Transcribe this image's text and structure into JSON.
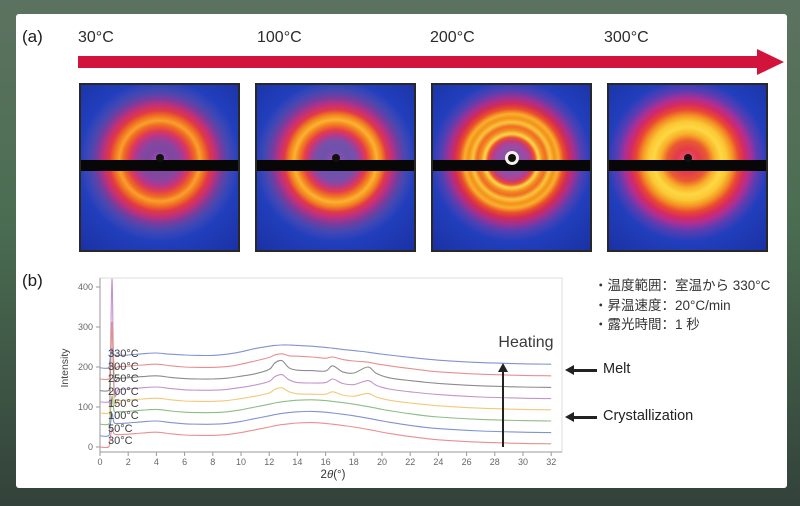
{
  "panel_a": {
    "label": "(a)",
    "temperatures": [
      "30°C",
      "100°C",
      "200°C",
      "300°C"
    ],
    "arrow_color": "#d2143c",
    "detector_images": [
      {
        "temperature": "30°C",
        "appearance": "broad diffuse amorphous halo, purple center, black beamstop dot and horizontal beamstop bar"
      },
      {
        "temperature": "100°C",
        "appearance": "broad diffuse amorphous halo, slightly brighter yellow-orange ring"
      },
      {
        "temperature": "200°C",
        "appearance": "multiple sharp concentric crystalline rings, bright yellow inner ring, white ring around beamstop"
      },
      {
        "temperature": "300°C",
        "appearance": "bright broad yellow ring with hot red-orange center (near melt)"
      }
    ]
  },
  "panel_b": {
    "label": "(b)",
    "notes": [
      "・温度範囲：室温から 330°C",
      "・昇温速度：20°C/min",
      "・露光時間：1 秒"
    ],
    "heating_label": "Heating",
    "melt_label": "Melt",
    "crystallization_label": "Crystallization"
  },
  "chart_data": {
    "type": "line",
    "title": "",
    "xlabel": "2θ(°)",
    "ylabel": "Intensity",
    "xlim": [
      0,
      32.7
    ],
    "ylim": [
      -10,
      420
    ],
    "x_ticks": [
      0,
      2,
      4,
      6,
      8,
      10,
      12,
      14,
      16,
      18,
      20,
      22,
      24,
      26,
      28,
      30,
      32
    ],
    "y_ticks": [
      0,
      100,
      200,
      300,
      400
    ],
    "grid": false,
    "legend_position": "stacked curve labels at left, top-to-bottom hottest first",
    "x": [
      0,
      0.6,
      0.7,
      0.85,
      1.0,
      1.3,
      2,
      3,
      4,
      5,
      6,
      7,
      8,
      9,
      10,
      11,
      12,
      12.4,
      12.9,
      13.4,
      14,
      15,
      16,
      16.5,
      17.2,
      18,
      19,
      19.6,
      20.5,
      22,
      24,
      27,
      30,
      32
    ],
    "series": [
      {
        "label": "330°C",
        "color": "#8292d2",
        "offset": 198,
        "values": [
          198,
          198,
          216,
          246,
          231,
          229,
          230,
          233,
          235,
          232,
          230,
          229,
          229,
          232,
          238,
          246,
          252,
          254,
          255,
          255,
          254,
          252,
          249,
          247,
          244,
          241,
          237,
          234,
          230,
          224,
          217,
          211,
          208,
          207
        ]
      },
      {
        "label": "300°C",
        "color": "#e89090",
        "offset": 170,
        "values": [
          170,
          170,
          188,
          310,
          203,
          201,
          202,
          205,
          207,
          203,
          200,
          199,
          199,
          201,
          207,
          215,
          224,
          230,
          233,
          228,
          227,
          225,
          222,
          225,
          219,
          215,
          212,
          208,
          203,
          196,
          188,
          182,
          179,
          178
        ]
      },
      {
        "label": "250°C",
        "color": "#8c8c8c",
        "offset": 141,
        "values": [
          141,
          141,
          159,
          311,
          174,
          172,
          173,
          176,
          178,
          174,
          171,
          170,
          170,
          172,
          177,
          183,
          194,
          210,
          216,
          198,
          192,
          191,
          190,
          203,
          188,
          185,
          200,
          184,
          173,
          166,
          159,
          153,
          150,
          149
        ]
      },
      {
        "label": "200°C",
        "color": "#c394cb",
        "offset": 113,
        "values": [
          113,
          113,
          131,
          420,
          146,
          144,
          145,
          148,
          150,
          146,
          143,
          142,
          142,
          144,
          149,
          155,
          164,
          176,
          181,
          168,
          161,
          160,
          161,
          170,
          159,
          156,
          166,
          154,
          145,
          138,
          131,
          125,
          122,
          121
        ]
      },
      {
        "label": "150°C",
        "color": "#f3c878",
        "offset": 85,
        "values": [
          85,
          85,
          103,
          310,
          118,
          116,
          117,
          120,
          122,
          118,
          115,
          114,
          114,
          116,
          121,
          127,
          135,
          144,
          148,
          138,
          133,
          132,
          132,
          138,
          130,
          127,
          134,
          125,
          117,
          110,
          103,
          97,
          94,
          93
        ]
      },
      {
        "label": "100°C",
        "color": "#8fbc87",
        "offset": 57,
        "values": [
          57,
          57,
          75,
          127,
          90,
          88,
          89,
          92,
          94,
          90,
          87,
          86,
          86,
          88,
          93,
          100,
          107,
          110,
          113,
          115,
          117,
          118,
          116,
          114,
          111,
          107,
          101,
          97,
          91,
          83,
          75,
          69,
          66,
          65
        ]
      },
      {
        "label": "50°C",
        "color": "#8292d2",
        "offset": 28,
        "values": [
          28,
          28,
          46,
          83,
          61,
          59,
          60,
          63,
          65,
          61,
          58,
          57,
          57,
          59,
          64,
          71,
          78,
          81,
          84,
          86,
          88,
          89,
          87,
          85,
          82,
          78,
          72,
          68,
          62,
          54,
          46,
          40,
          37,
          36
        ]
      },
      {
        "label": "30°C",
        "color": "#e89090",
        "offset": 0,
        "values": [
          0,
          0,
          18,
          45,
          33,
          31,
          32,
          35,
          37,
          33,
          30,
          29,
          29,
          31,
          36,
          43,
          50,
          53,
          56,
          58,
          60,
          61,
          59,
          57,
          54,
          50,
          44,
          40,
          34,
          26,
          18,
          12,
          9,
          8
        ]
      }
    ]
  }
}
